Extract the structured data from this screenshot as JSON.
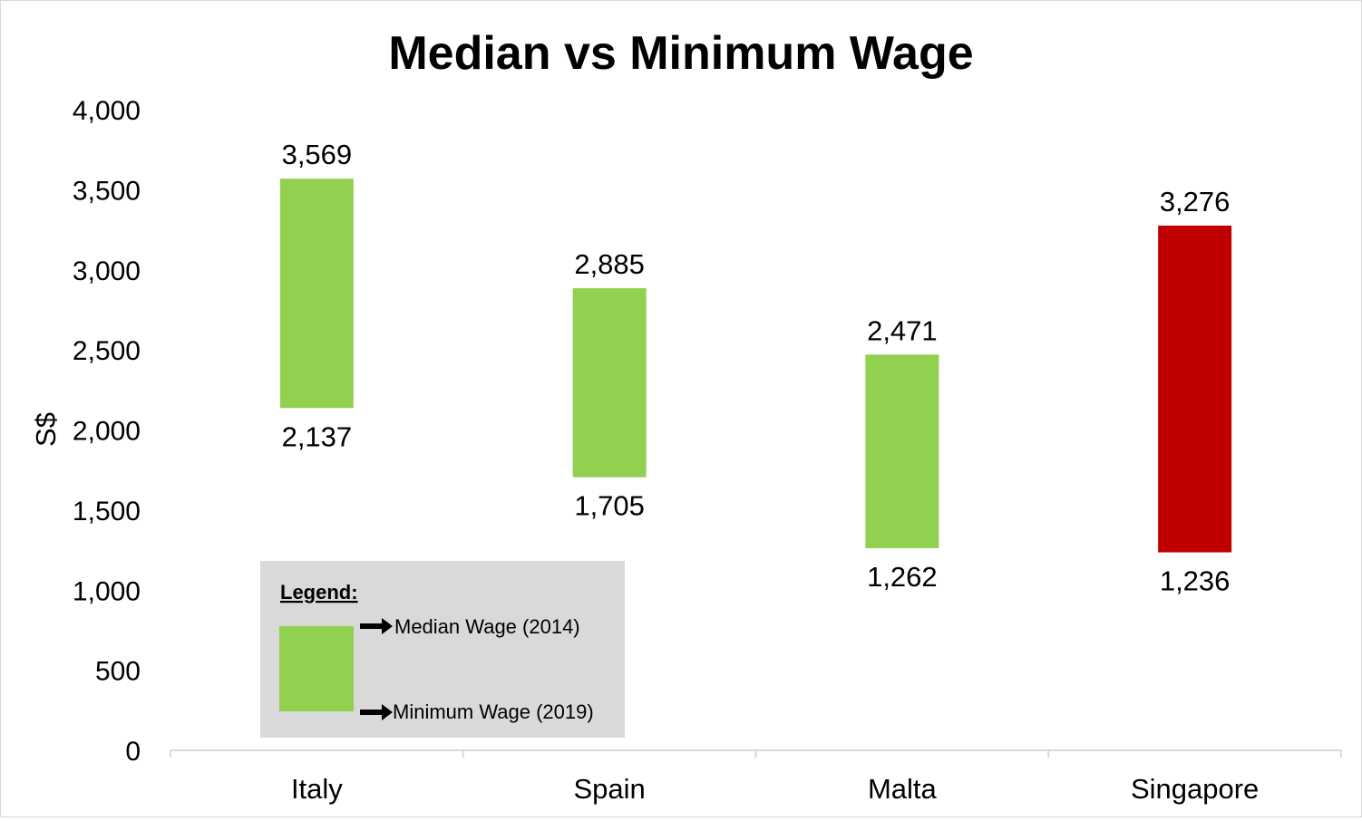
{
  "chart_data": {
    "type": "floating-bar",
    "title": "Median vs Minimum Wage",
    "ylabel": "S$",
    "xlabel": "",
    "ylim": [
      0,
      4000
    ],
    "yticks": [
      0,
      500,
      1000,
      1500,
      2000,
      2500,
      3000,
      3500,
      4000
    ],
    "ytick_labels": [
      "0",
      "500",
      "1,000",
      "1,500",
      "2,000",
      "2,500",
      "3,000",
      "3,500",
      "4,000"
    ],
    "categories": [
      "Italy",
      "Spain",
      "Malta",
      "Singapore"
    ],
    "low": [
      2137,
      1705,
      1262,
      1236
    ],
    "high": [
      3569,
      2885,
      2471,
      3276
    ],
    "low_labels": [
      "2,137",
      "1,705",
      "1,262",
      "1,236"
    ],
    "high_labels": [
      "3,569",
      "2,885",
      "2,471",
      "3,276"
    ],
    "colors": [
      "#92d050",
      "#92d050",
      "#92d050",
      "#c00000"
    ],
    "grid": false,
    "legend": {
      "title": "Legend:",
      "top_label": "Median Wage (2014)",
      "bottom_label": "Minimum Wage (2019)",
      "swatch_color": "#92d050",
      "background": "#d9d9d9",
      "placement": "bottom-left"
    }
  }
}
